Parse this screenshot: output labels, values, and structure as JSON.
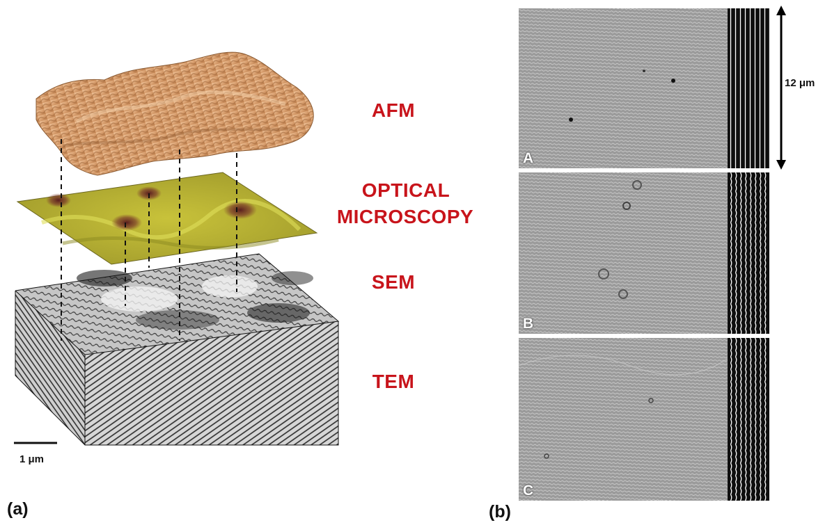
{
  "panel_a": {
    "label": "(a)",
    "techniques": {
      "afm": "AFM",
      "optical_line1": "OPTICAL",
      "optical_line2": "MICROSCOPY",
      "sem": "SEM",
      "tem": "TEM"
    },
    "scale_bar_label": "1 μm",
    "colors": {
      "label_red": "#c8141b",
      "afm_surface": "#d9a070",
      "optical_plane": "#b8b02a"
    }
  },
  "panel_b": {
    "label": "(b)",
    "subpanels": [
      "A",
      "B",
      "C"
    ],
    "scale_label": "12 μm"
  }
}
